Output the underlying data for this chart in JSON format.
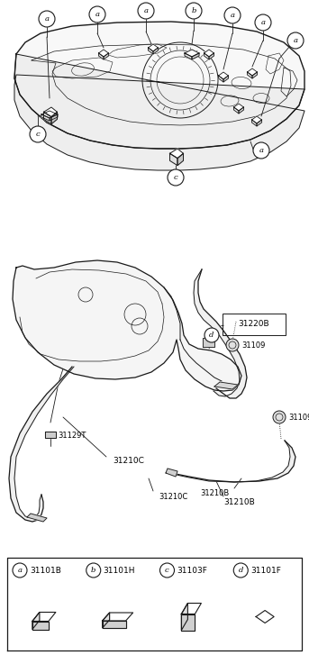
{
  "bg_color": "#ffffff",
  "line_color": "#1a1a1a",
  "legend_items": [
    {
      "label": "a",
      "part": "31101B"
    },
    {
      "label": "b",
      "part": "31101H"
    },
    {
      "label": "c",
      "part": "31103F"
    },
    {
      "label": "d",
      "part": "31101F"
    }
  ],
  "figsize": [
    3.43,
    7.27
  ],
  "dpi": 100
}
